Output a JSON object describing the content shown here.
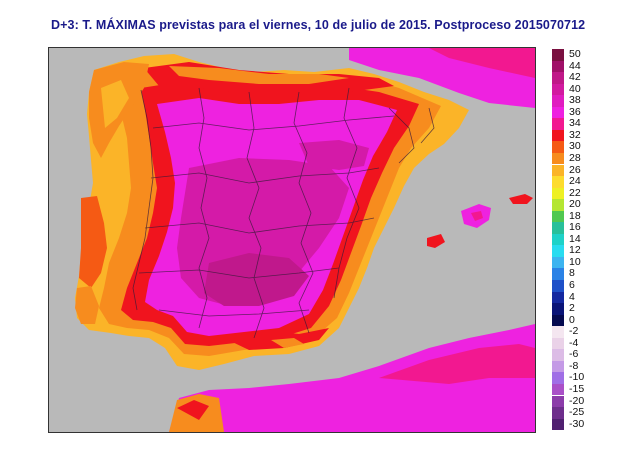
{
  "title": "D+3: T. MÁXIMAS previstas para el viernes, 10 de julio de 2015. Postproceso 2015070712",
  "legend": {
    "items": [
      {
        "label": "50",
        "color": "#7a1040"
      },
      {
        "label": "44",
        "color": "#a01068"
      },
      {
        "label": "42",
        "color": "#c01888"
      },
      {
        "label": "40",
        "color": "#d21aa0"
      },
      {
        "label": "38",
        "color": "#e01cc0"
      },
      {
        "label": "36",
        "color": "#ee20e0"
      },
      {
        "label": "34",
        "color": "#f21890"
      },
      {
        "label": "32",
        "color": "#f0141e"
      },
      {
        "label": "30",
        "color": "#f55a14"
      },
      {
        "label": "28",
        "color": "#f78c1e"
      },
      {
        "label": "26",
        "color": "#fbb428"
      },
      {
        "label": "24",
        "color": "#fddc2e"
      },
      {
        "label": "22",
        "color": "#eef024"
      },
      {
        "label": "20",
        "color": "#b4e632"
      },
      {
        "label": "18",
        "color": "#50c850"
      },
      {
        "label": "16",
        "color": "#28c09a"
      },
      {
        "label": "14",
        "color": "#1ed2c8"
      },
      {
        "label": "12",
        "color": "#28dcf0"
      },
      {
        "label": "10",
        "color": "#3cb4f0"
      },
      {
        "label": "8",
        "color": "#2a82e6"
      },
      {
        "label": "6",
        "color": "#1e50c8"
      },
      {
        "label": "4",
        "color": "#1428a0"
      },
      {
        "label": "2",
        "color": "#0a1478"
      },
      {
        "label": "0",
        "color": "#050a50"
      },
      {
        "label": "-2",
        "color": "#f4e6f0"
      },
      {
        "label": "-4",
        "color": "#ead2e8"
      },
      {
        "label": "-6",
        "color": "#dcbce6"
      },
      {
        "label": "-8",
        "color": "#c49ae6"
      },
      {
        "label": "-10",
        "color": "#a06ee6"
      },
      {
        "label": "-15",
        "color": "#aa50c8"
      },
      {
        "label": "-20",
        "color": "#8c3caa"
      },
      {
        "label": "-25",
        "color": "#6e2e8c"
      },
      {
        "label": "-30",
        "color": "#502070"
      }
    ]
  },
  "colors": {
    "sea": "#b9b9b9",
    "hot_core": "#d41aa8",
    "hot": "#ee22e0",
    "warm": "#f21890",
    "red": "#f0141e",
    "orange": "#f78c1e",
    "yellow": "#fbb428",
    "borders": "#3a1a3a"
  }
}
